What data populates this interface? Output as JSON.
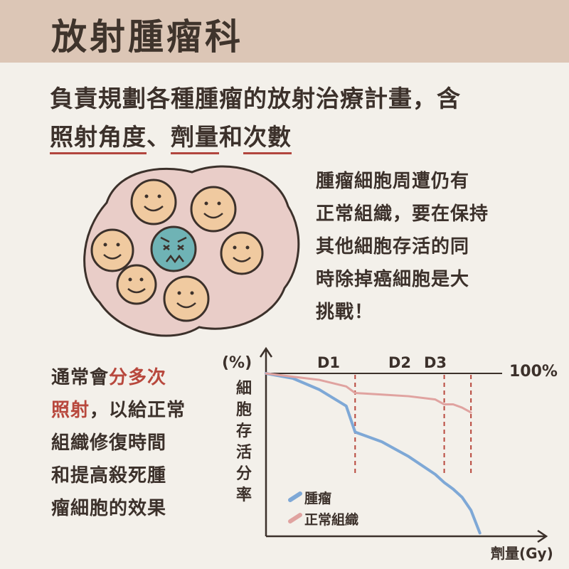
{
  "banner": {
    "title": "放射腫瘤科"
  },
  "intro": {
    "line1": "負責規劃各種腫瘤的放射治療計畫，含",
    "term1": "照射角度",
    "sep": "、",
    "term2": "劑量",
    "and": "和",
    "term3": "次數"
  },
  "side_note": {
    "lines": [
      "腫瘤細胞周遭仍有",
      "正常組織，要在保持",
      "其他細胞存活的同",
      "時除掉癌細胞是大",
      "挑戰！"
    ]
  },
  "left_note": {
    "l1_a": "通常會",
    "l1_b": "分多次",
    "l2_a": "照射",
    "l2_b": "，以給正常",
    "l3": "組織修復時間",
    "l4": "和提高殺死腫",
    "l5": "瘤細胞的效果"
  },
  "colors": {
    "tumor": "#7ea8d6",
    "normal": "#e0a3a0",
    "happy_cell": "#f0caa0",
    "cancer_cell": "#6fb3b5",
    "blob": "#e9cdc8",
    "accent": "#b8483d"
  },
  "chart_data": {
    "type": "line",
    "ylabel_unit": "(%)",
    "ylabel": "細胞存活分率",
    "xlabel": "劑量(Gy)",
    "reference_label": "100%",
    "dose_markers": [
      "D1",
      "D2",
      "D3"
    ],
    "marker_x": [
      1.0,
      2.0,
      2.3
    ],
    "x_range": [
      0,
      2.65
    ],
    "y_range": [
      0,
      100
    ],
    "series": [
      {
        "name": "腫瘤",
        "x": [
          0,
          0.3,
          0.6,
          0.9,
          1.0,
          1.3,
          1.6,
          1.9,
          2.0,
          2.1,
          2.2,
          2.3,
          2.4
        ],
        "y": [
          100,
          97,
          90,
          80,
          64,
          58,
          49,
          38,
          33,
          29,
          24,
          16,
          2
        ]
      },
      {
        "name": "正常組織",
        "x": [
          0,
          0.3,
          0.6,
          0.9,
          1.0,
          1.3,
          1.6,
          1.9,
          2.0,
          2.1,
          2.2,
          2.3
        ],
        "y": [
          100,
          98,
          96,
          92,
          88,
          87,
          86,
          84,
          81,
          81,
          79,
          76
        ]
      }
    ]
  }
}
